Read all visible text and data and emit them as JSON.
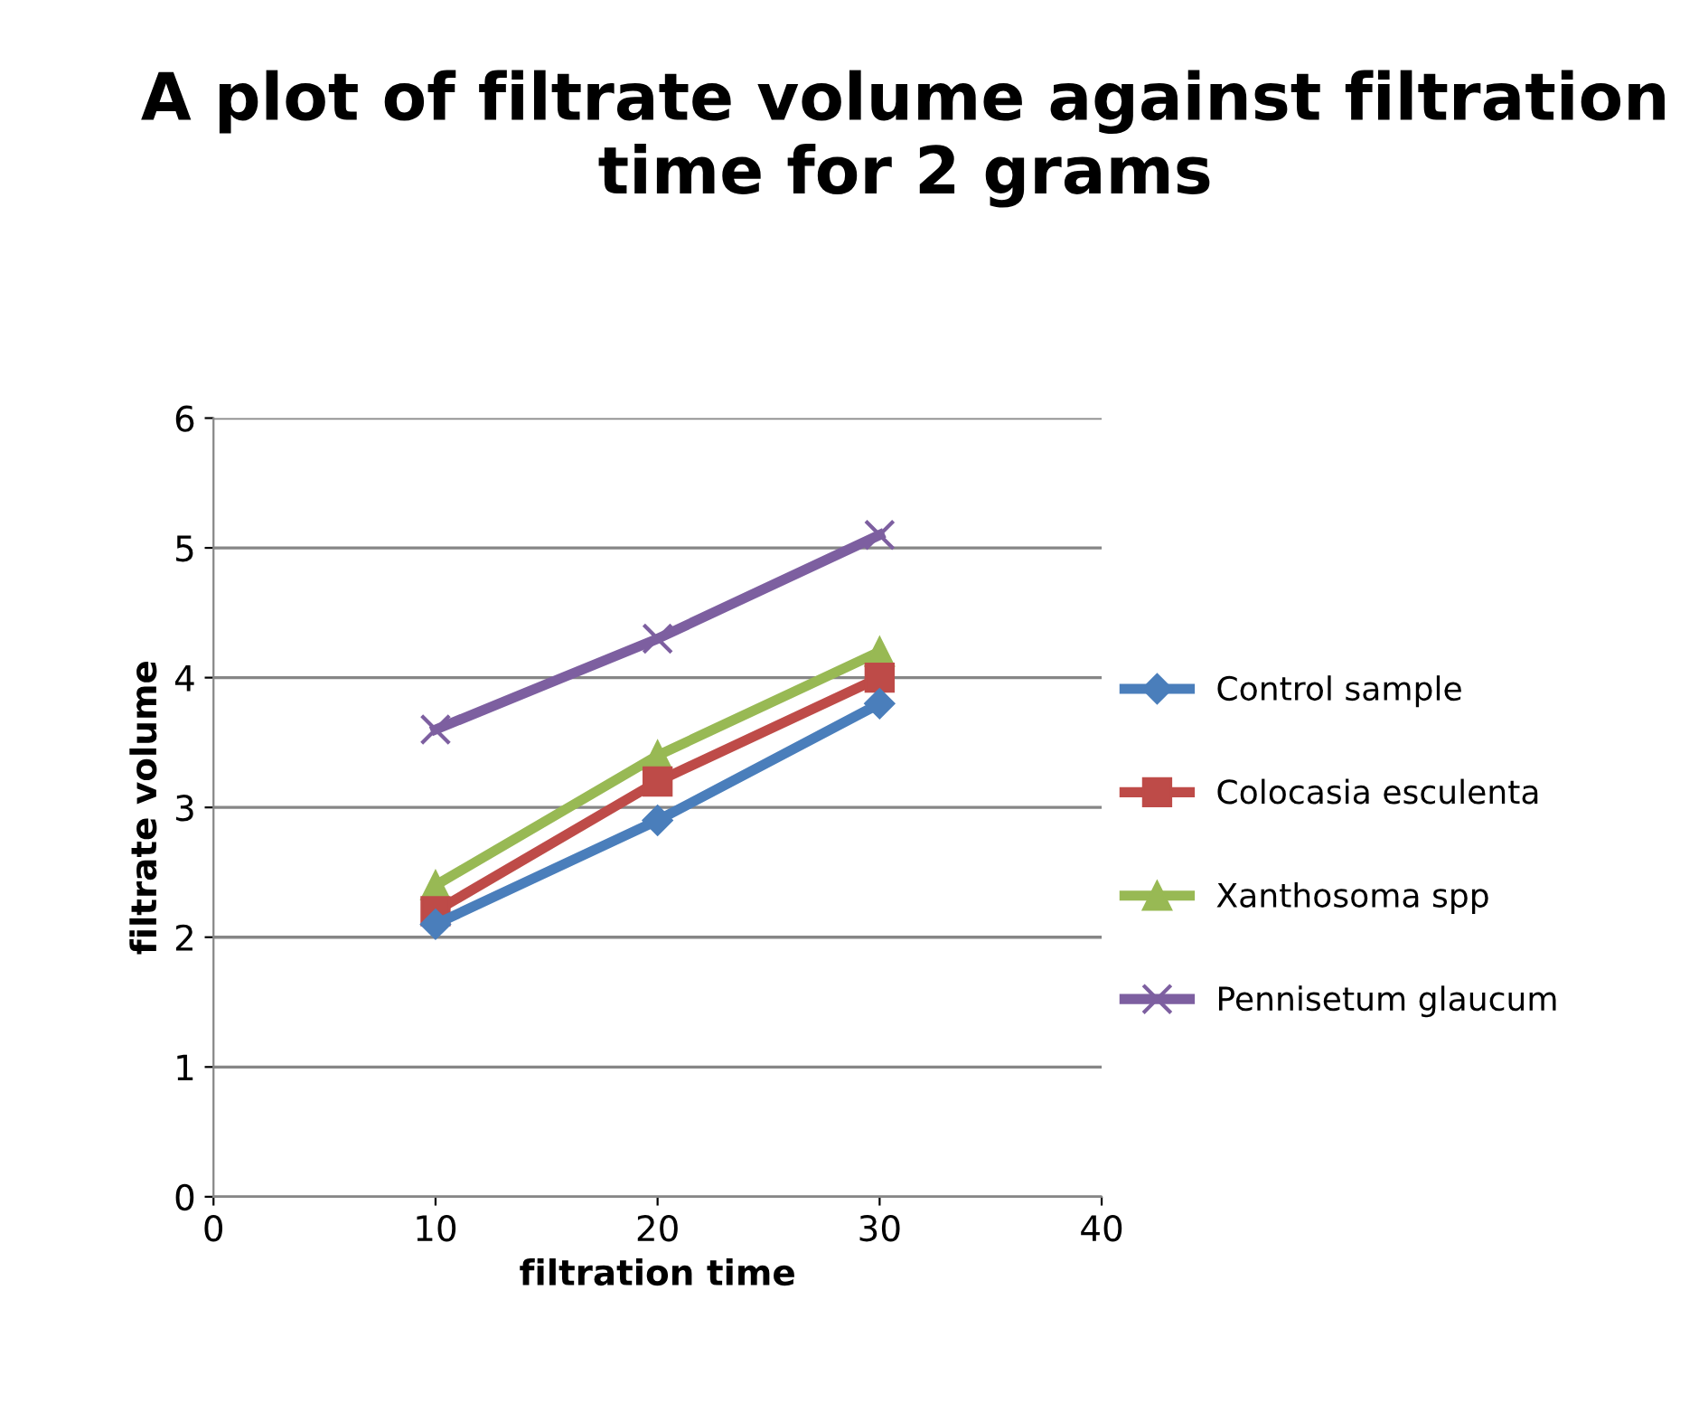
{
  "chart_data": {
    "type": "line",
    "title": "A plot of filtrate volume against filtration time for 2 grams",
    "xlabel": "filtration time",
    "ylabel": "filtrate volume",
    "x": [
      10,
      20,
      30
    ],
    "series": [
      {
        "name": "Control sample",
        "color": "#4a7ebb",
        "marker": "diamond",
        "values": [
          2.1,
          2.9,
          3.8
        ]
      },
      {
        "name": "Colocasia esculenta",
        "color": "#be4b48",
        "marker": "square",
        "values": [
          2.2,
          3.2,
          4.0
        ]
      },
      {
        "name": "Xanthosoma spp",
        "color": "#98b954",
        "marker": "triangle",
        "values": [
          2.4,
          3.4,
          4.2
        ]
      },
      {
        "name": "Pennisetum glaucum",
        "color": "#7d5fa0",
        "marker": "cross",
        "values": [
          3.6,
          4.3,
          5.1
        ]
      }
    ],
    "xlim": [
      0,
      40
    ],
    "xticks": [
      0,
      10,
      20,
      30,
      40
    ],
    "ylim": [
      0,
      6
    ],
    "yticks": [
      0,
      1,
      2,
      3,
      4,
      5,
      6
    ],
    "grid": "y",
    "legend": "right",
    "line_style": "solid"
  }
}
